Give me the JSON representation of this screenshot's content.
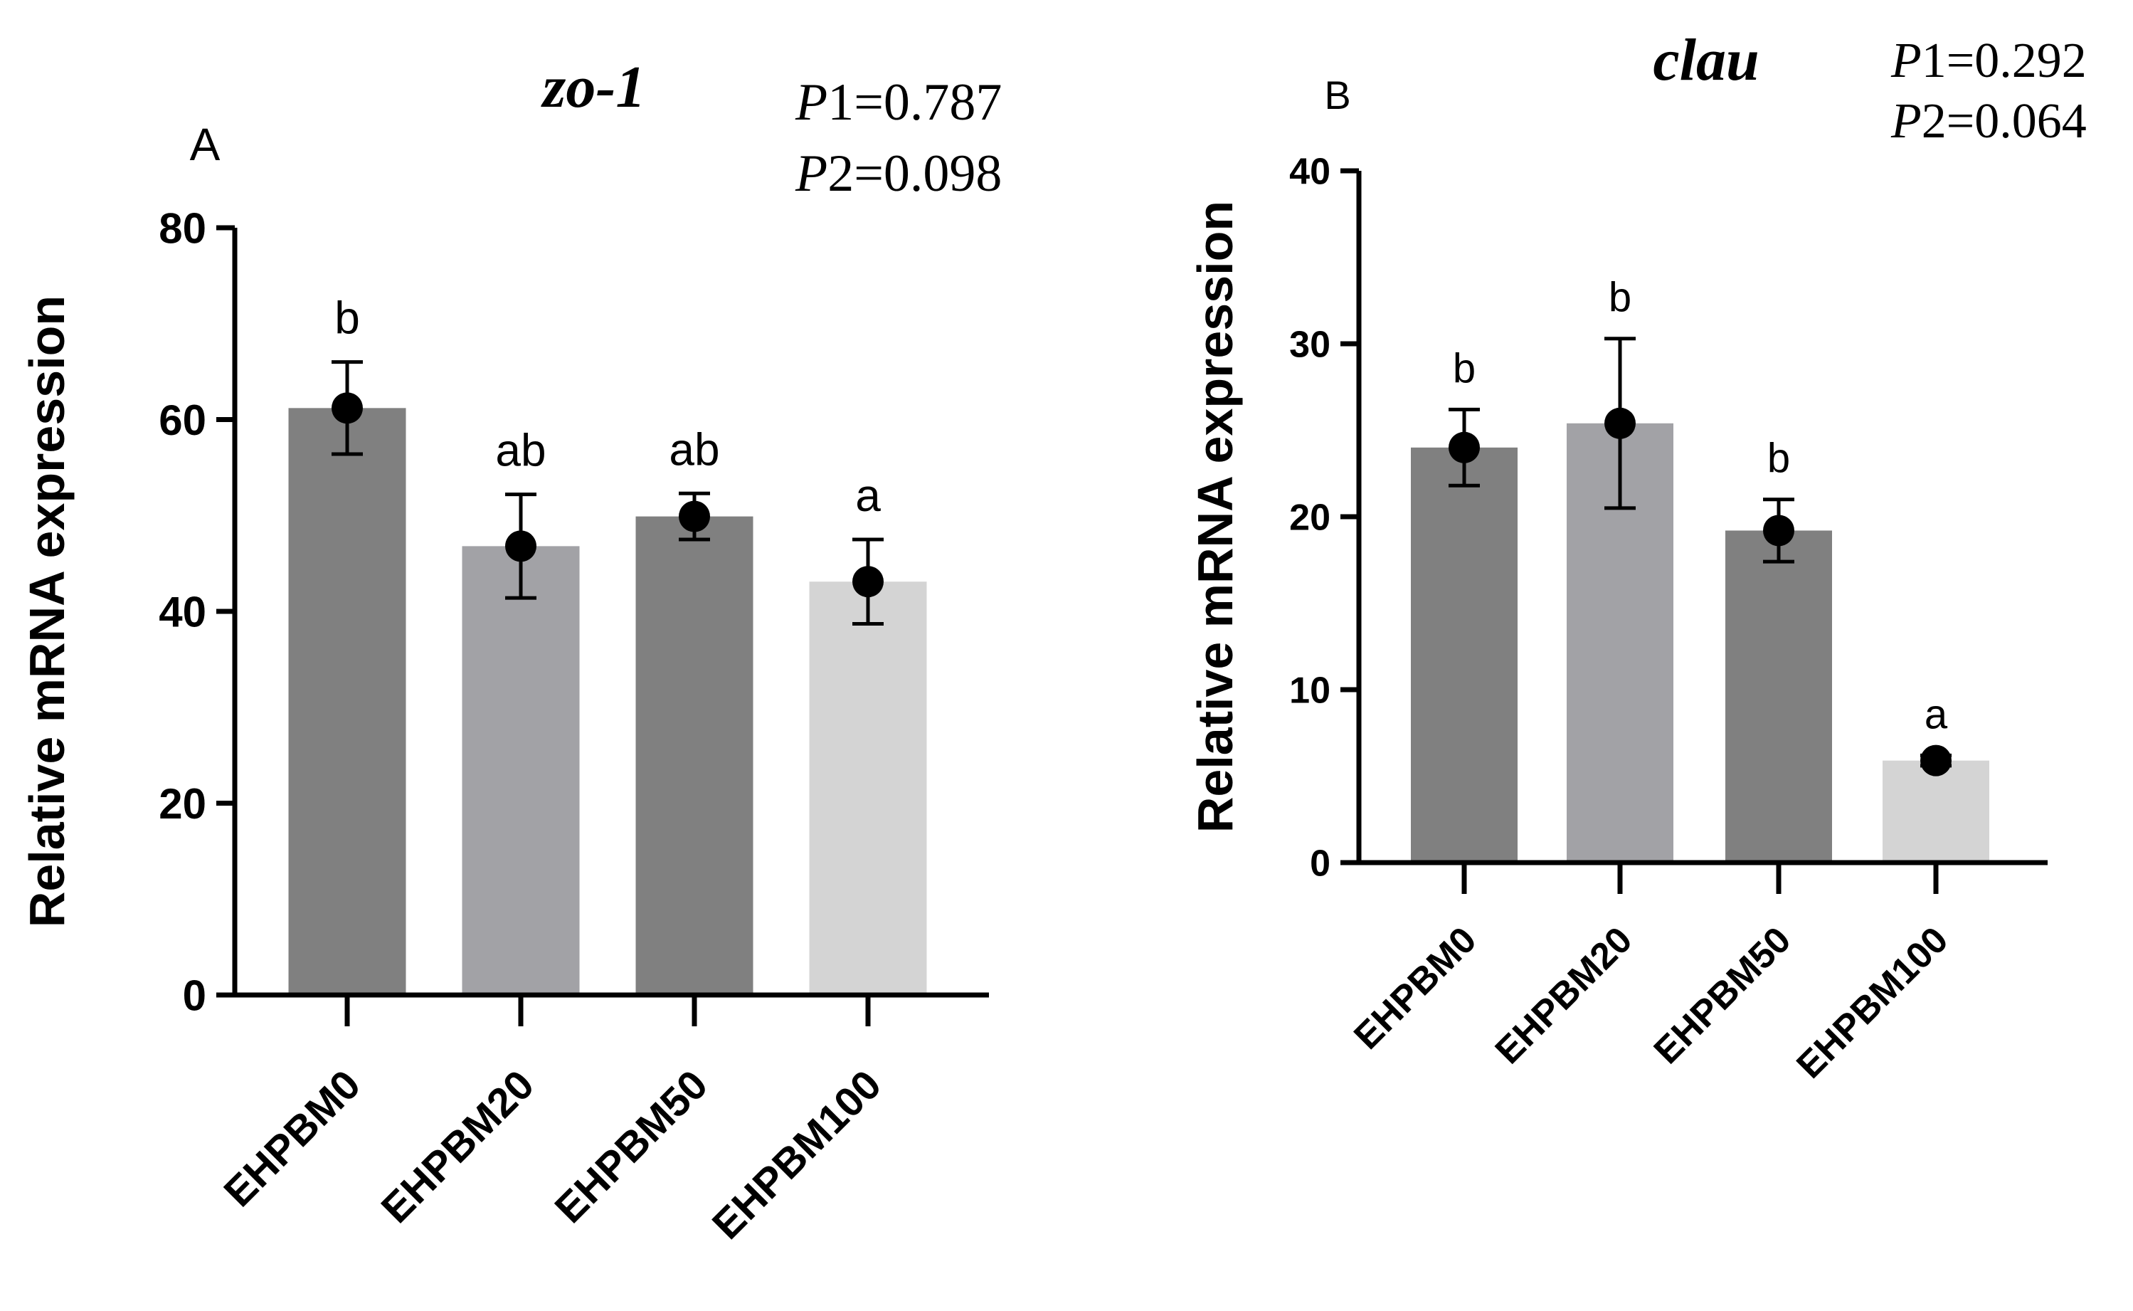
{
  "chart_data": [
    {
      "type": "bar",
      "panel": "A",
      "title": "zo-1",
      "p_values": [
        {
          "prefix": "P",
          "label": "1=0.787"
        },
        {
          "prefix": "P",
          "label": "2=0.098"
        }
      ],
      "ylabel": "Relative mRNA expression",
      "xlabel": "",
      "ylim": [
        0,
        80
      ],
      "yticks": [
        0,
        20,
        40,
        60,
        80
      ],
      "categories": [
        "EHPBM0",
        "EHPBM20",
        "EHPBM50",
        "EHPBM100"
      ],
      "values": [
        61.2,
        46.8,
        49.9,
        43.1
      ],
      "errors": [
        4.8,
        5.4,
        2.4,
        4.4
      ],
      "significance": [
        "b",
        "ab",
        "ab",
        "a"
      ],
      "bar_colors": [
        "#808080",
        "#a2a2a6",
        "#808080",
        "#d4d4d4"
      ]
    },
    {
      "type": "bar",
      "panel": "B",
      "title": "clau",
      "p_values": [
        {
          "prefix": "P",
          "label": "1=0.292"
        },
        {
          "prefix": "P",
          "label": "2=0.064"
        }
      ],
      "ylabel": "Relative mRNA expression",
      "xlabel": "",
      "ylim": [
        0,
        40
      ],
      "yticks": [
        0,
        10,
        20,
        30,
        40
      ],
      "categories": [
        "EHPBM0",
        "EHPBM20",
        "EHPBM50",
        "EHPBM100"
      ],
      "values": [
        24.0,
        25.4,
        19.2,
        5.9
      ],
      "errors": [
        2.2,
        4.9,
        1.8,
        0.3
      ],
      "significance": [
        "b",
        "b",
        "b",
        "a"
      ],
      "bar_colors": [
        "#808080",
        "#a2a2a6",
        "#808080",
        "#d4d4d4"
      ]
    }
  ]
}
